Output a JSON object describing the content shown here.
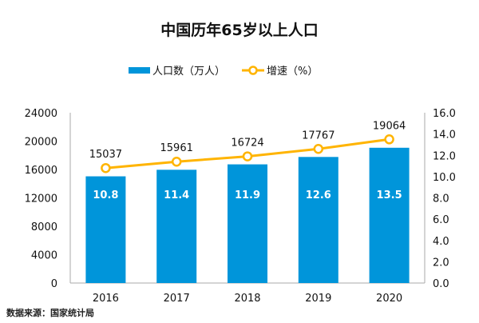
{
  "chart_data": {
    "type": "bar+line",
    "title": "中国历年65岁以上人口",
    "categories": [
      "2016",
      "2017",
      "2018",
      "2019",
      "2020"
    ],
    "series": [
      {
        "name": "人口数（万人）",
        "type": "bar",
        "axis": "left",
        "color": "#0095DA",
        "values": [
          15037,
          15961,
          16724,
          17767,
          19064
        ]
      },
      {
        "name": "增速（%）",
        "type": "line",
        "axis": "right",
        "color": "#FFB400",
        "values": [
          10.8,
          11.4,
          11.9,
          12.6,
          13.5
        ]
      }
    ],
    "ylim_left": [
      0,
      24000
    ],
    "yticks_left": [
      "0",
      "4000",
      "8000",
      "12000",
      "16000",
      "20000",
      "24000"
    ],
    "ylim_right": [
      0,
      16
    ],
    "yticks_right": [
      "0.0",
      "2.0",
      "4.0",
      "6.0",
      "8.0",
      "10.0",
      "12.0",
      "14.0",
      "16.0"
    ],
    "grid": false,
    "legend": "top",
    "source": "数据来源：国家统计局"
  }
}
